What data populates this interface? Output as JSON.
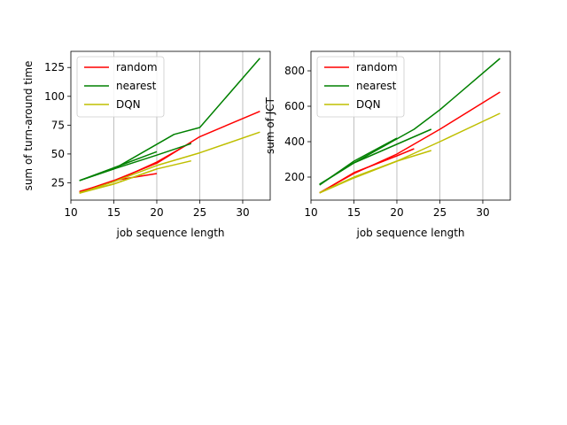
{
  "chart_data": [
    {
      "type": "line",
      "xlabel": "job sequence length",
      "ylabel": "sum of turn-around time",
      "xlim": [
        10,
        33.2
      ],
      "ylim": [
        10,
        139
      ],
      "xticks": [
        10,
        15,
        20,
        25,
        30
      ],
      "yticks": [
        25,
        50,
        75,
        100,
        125
      ],
      "grid": "vertical",
      "legend_position": "top-left",
      "series": [
        {
          "name": "random",
          "color": "#ff0000",
          "segments": [
            [
              [
                11,
                17
              ],
              [
                15,
                27
              ],
              [
                20,
                33
              ]
            ],
            [
              [
                11,
                17.5
              ],
              [
                15,
                26
              ],
              [
                20,
                43
              ],
              [
                24,
                60
              ]
            ],
            [
              [
                11,
                17
              ],
              [
                15,
                27
              ],
              [
                20,
                42
              ],
              [
                25,
                65
              ],
              [
                32,
                87
              ]
            ]
          ]
        },
        {
          "name": "nearest",
          "color": "#008000",
          "segments": [
            [
              [
                11,
                27
              ],
              [
                15,
                38
              ],
              [
                20,
                52
              ]
            ],
            [
              [
                11,
                27
              ],
              [
                15,
                37
              ],
              [
                20,
                49
              ],
              [
                24,
                59
              ]
            ],
            [
              [
                11,
                27
              ],
              [
                15,
                37
              ],
              [
                22,
                67
              ],
              [
                25,
                73
              ],
              [
                32,
                133
              ]
            ]
          ]
        },
        {
          "name": "DQN",
          "color": "#bfbf00",
          "segments": [
            [
              [
                11,
                16
              ],
              [
                15,
                24
              ],
              [
                20,
                37
              ]
            ],
            [
              [
                11,
                16.5
              ],
              [
                15,
                24
              ],
              [
                20,
                37
              ],
              [
                24,
                44
              ]
            ],
            [
              [
                11,
                16
              ],
              [
                15,
                26
              ],
              [
                20,
                40
              ],
              [
                25,
                51
              ],
              [
                32,
                69
              ]
            ]
          ]
        }
      ]
    },
    {
      "type": "line",
      "xlabel": "job sequence length",
      "ylabel": "sum of JCT",
      "xlim": [
        10,
        33.2
      ],
      "ylim": [
        70,
        910
      ],
      "xticks": [
        10,
        15,
        20,
        25,
        30
      ],
      "yticks": [
        200,
        400,
        600,
        800
      ],
      "grid": "vertical",
      "legend_position": "top-left",
      "series": [
        {
          "name": "random",
          "color": "#ff0000",
          "segments": [
            [
              [
                11,
                110
              ],
              [
                15,
                225
              ],
              [
                20,
                320
              ],
              [
                22,
                360
              ]
            ],
            [
              [
                11,
                112
              ],
              [
                15,
                220
              ],
              [
                20,
                330
              ],
              [
                25,
                470
              ],
              [
                32,
                680
              ]
            ]
          ]
        },
        {
          "name": "nearest",
          "color": "#008000",
          "segments": [
            [
              [
                11,
                155
              ],
              [
                15,
                290
              ],
              [
                20,
                420
              ]
            ],
            [
              [
                11,
                158
              ],
              [
                15,
                280
              ],
              [
                24,
                470
              ]
            ],
            [
              [
                11,
                160
              ],
              [
                15,
                280
              ],
              [
                22,
                470
              ],
              [
                25,
                580
              ],
              [
                32,
                870
              ]
            ]
          ]
        },
        {
          "name": "DQN",
          "color": "#bfbf00",
          "segments": [
            [
              [
                11,
                110
              ],
              [
                15,
                195
              ],
              [
                20,
                290
              ],
              [
                24,
                350
              ]
            ],
            [
              [
                11,
                112
              ],
              [
                15,
                200
              ],
              [
                20,
                290
              ],
              [
                25,
                400
              ],
              [
                32,
                560
              ]
            ]
          ]
        }
      ]
    }
  ]
}
